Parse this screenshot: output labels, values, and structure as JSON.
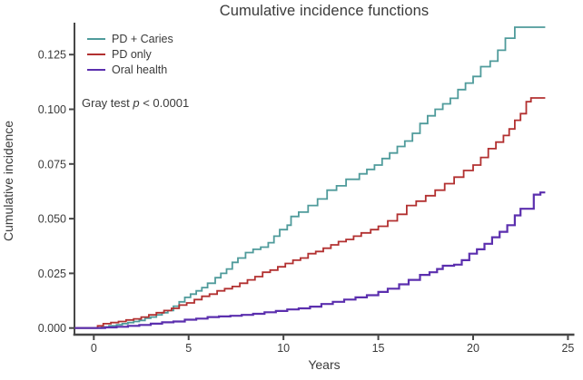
{
  "title": "Cumulative incidence functions",
  "axes": {
    "x_label": "Years",
    "y_label": "Cumulative incidence",
    "x_ticks": [
      "0",
      "5",
      "10",
      "15",
      "20",
      "25"
    ],
    "y_ticks": [
      "0.000",
      "0.025",
      "0.050",
      "0.075",
      "0.100",
      "0.125"
    ]
  },
  "annotation": {
    "prefix": "Gray test ",
    "stat": "p",
    "suffix": " < 0.0001"
  },
  "colors": {
    "background": "#ffffff",
    "axis": "#474747",
    "text": "#3a3a3a",
    "teal": "#4f9b9b",
    "red": "#b23030",
    "purple": "#5b2fae"
  },
  "chart_data": {
    "type": "line",
    "style": "step-function",
    "title": "Cumulative incidence functions",
    "xlabel": "Years",
    "ylabel": "Cumulative incidence",
    "xlim": [
      0,
      25
    ],
    "ylim": [
      0,
      0.14
    ],
    "grid": false,
    "legend_position": "top-left-inside",
    "annotation": "Gray test p < 0.0001",
    "series": [
      {
        "name": "PD + Caries",
        "color": "#4f9b9b",
        "stroke_width": 1.8,
        "final_value": 0.137,
        "points": [
          [
            -1,
            0
          ],
          [
            0,
            0
          ],
          [
            0.4,
            0.0005
          ],
          [
            0.8,
            0.001
          ],
          [
            1.2,
            0.0015
          ],
          [
            1.5,
            0.002
          ],
          [
            1.8,
            0.0025
          ],
          [
            2.1,
            0.003
          ],
          [
            2.4,
            0.0035
          ],
          [
            2.7,
            0.0045
          ],
          [
            3,
            0.005
          ],
          [
            3.3,
            0.006
          ],
          [
            3.6,
            0.007
          ],
          [
            3.9,
            0.008
          ],
          [
            4.2,
            0.01
          ],
          [
            4.5,
            0.012
          ],
          [
            4.8,
            0.014
          ],
          [
            5.1,
            0.0155
          ],
          [
            5.4,
            0.017
          ],
          [
            5.7,
            0.0185
          ],
          [
            6,
            0.0205
          ],
          [
            6.4,
            0.023
          ],
          [
            6.7,
            0.025
          ],
          [
            7,
            0.027
          ],
          [
            7.3,
            0.03
          ],
          [
            7.6,
            0.032
          ],
          [
            8,
            0.0345
          ],
          [
            8.4,
            0.036
          ],
          [
            8.8,
            0.037
          ],
          [
            9.2,
            0.039
          ],
          [
            9.5,
            0.042
          ],
          [
            9.8,
            0.045
          ],
          [
            10.2,
            0.047
          ],
          [
            10.4,
            0.051
          ],
          [
            10.8,
            0.053
          ],
          [
            11.3,
            0.056
          ],
          [
            11.8,
            0.059
          ],
          [
            12.3,
            0.063
          ],
          [
            12.8,
            0.065
          ],
          [
            13.3,
            0.068
          ],
          [
            14,
            0.0705
          ],
          [
            14.4,
            0.0725
          ],
          [
            14.8,
            0.0745
          ],
          [
            15.2,
            0.0775
          ],
          [
            15.6,
            0.08
          ],
          [
            16,
            0.083
          ],
          [
            16.4,
            0.0855
          ],
          [
            16.8,
            0.089
          ],
          [
            17.2,
            0.0935
          ],
          [
            17.6,
            0.097
          ],
          [
            18,
            0.1
          ],
          [
            18.4,
            0.1025
          ],
          [
            18.8,
            0.105
          ],
          [
            19.2,
            0.109
          ],
          [
            19.6,
            0.112
          ],
          [
            20,
            0.115
          ],
          [
            20.4,
            0.1195
          ],
          [
            20.9,
            0.122
          ],
          [
            21.3,
            0.127
          ],
          [
            21.7,
            0.1325
          ],
          [
            22.2,
            0.1375
          ],
          [
            23.8,
            0.1375
          ]
        ]
      },
      {
        "name": "PD only",
        "color": "#b23030",
        "stroke_width": 1.8,
        "final_value": 0.105,
        "points": [
          [
            -1,
            0
          ],
          [
            0,
            0
          ],
          [
            0.2,
            0.001
          ],
          [
            0.5,
            0.002
          ],
          [
            0.9,
            0.0025
          ],
          [
            1.3,
            0.003
          ],
          [
            1.7,
            0.0037
          ],
          [
            2.1,
            0.0042
          ],
          [
            2.5,
            0.005
          ],
          [
            2.9,
            0.006
          ],
          [
            3.3,
            0.007
          ],
          [
            3.7,
            0.008
          ],
          [
            4.1,
            0.009
          ],
          [
            4.5,
            0.0105
          ],
          [
            4.9,
            0.0115
          ],
          [
            5.3,
            0.013
          ],
          [
            5.7,
            0.0145
          ],
          [
            6.1,
            0.0155
          ],
          [
            6.5,
            0.017
          ],
          [
            6.9,
            0.018
          ],
          [
            7.3,
            0.019
          ],
          [
            7.7,
            0.0205
          ],
          [
            8.1,
            0.022
          ],
          [
            8.5,
            0.0235
          ],
          [
            8.9,
            0.0255
          ],
          [
            9.3,
            0.0265
          ],
          [
            9.7,
            0.028
          ],
          [
            10.1,
            0.0295
          ],
          [
            10.5,
            0.031
          ],
          [
            10.9,
            0.032
          ],
          [
            11.3,
            0.034
          ],
          [
            11.7,
            0.035
          ],
          [
            12.1,
            0.0365
          ],
          [
            12.5,
            0.038
          ],
          [
            12.9,
            0.0395
          ],
          [
            13.3,
            0.0405
          ],
          [
            13.7,
            0.042
          ],
          [
            14.1,
            0.0435
          ],
          [
            14.6,
            0.045
          ],
          [
            15,
            0.0465
          ],
          [
            15.5,
            0.049
          ],
          [
            16,
            0.052
          ],
          [
            16.5,
            0.056
          ],
          [
            17,
            0.058
          ],
          [
            17.5,
            0.0605
          ],
          [
            18,
            0.063
          ],
          [
            18.5,
            0.066
          ],
          [
            19,
            0.069
          ],
          [
            19.5,
            0.072
          ],
          [
            20,
            0.0745
          ],
          [
            20.4,
            0.078
          ],
          [
            20.8,
            0.082
          ],
          [
            21.2,
            0.085
          ],
          [
            21.6,
            0.088
          ],
          [
            21.9,
            0.091
          ],
          [
            22.2,
            0.095
          ],
          [
            22.5,
            0.098
          ],
          [
            22.8,
            0.1035
          ],
          [
            23.05,
            0.1052
          ],
          [
            23.8,
            0.1052
          ]
        ]
      },
      {
        "name": "Oral health",
        "color": "#5b2fae",
        "stroke_width": 2.2,
        "final_value": 0.062,
        "points": [
          [
            -1,
            0
          ],
          [
            0,
            0
          ],
          [
            0.6,
            0.0003
          ],
          [
            1.2,
            0.0006
          ],
          [
            1.8,
            0.001
          ],
          [
            2.4,
            0.0014
          ],
          [
            3,
            0.002
          ],
          [
            3.6,
            0.0026
          ],
          [
            4.2,
            0.003
          ],
          [
            4.8,
            0.0038
          ],
          [
            5.4,
            0.0043
          ],
          [
            6,
            0.005
          ],
          [
            6.6,
            0.0053
          ],
          [
            7.2,
            0.0056
          ],
          [
            7.8,
            0.006
          ],
          [
            8.4,
            0.0065
          ],
          [
            9,
            0.0072
          ],
          [
            9.6,
            0.0078
          ],
          [
            10.2,
            0.0085
          ],
          [
            10.8,
            0.009
          ],
          [
            11.4,
            0.0098
          ],
          [
            12,
            0.011
          ],
          [
            12.6,
            0.012
          ],
          [
            13.2,
            0.013
          ],
          [
            13.8,
            0.014
          ],
          [
            14.4,
            0.015
          ],
          [
            15,
            0.0165
          ],
          [
            15.5,
            0.018
          ],
          [
            16.1,
            0.02
          ],
          [
            16.6,
            0.022
          ],
          [
            17.2,
            0.0243
          ],
          [
            17.7,
            0.0255
          ],
          [
            18.1,
            0.027
          ],
          [
            18.4,
            0.0285
          ],
          [
            19,
            0.029
          ],
          [
            19.4,
            0.031
          ],
          [
            19.8,
            0.034
          ],
          [
            20.2,
            0.036
          ],
          [
            20.6,
            0.0385
          ],
          [
            21,
            0.0415
          ],
          [
            21.4,
            0.044
          ],
          [
            21.8,
            0.047
          ],
          [
            22.2,
            0.0515
          ],
          [
            22.5,
            0.0545
          ],
          [
            23.1,
            0.0545
          ],
          [
            23.2,
            0.061
          ],
          [
            23.55,
            0.062
          ],
          [
            23.8,
            0.062
          ]
        ]
      }
    ]
  }
}
